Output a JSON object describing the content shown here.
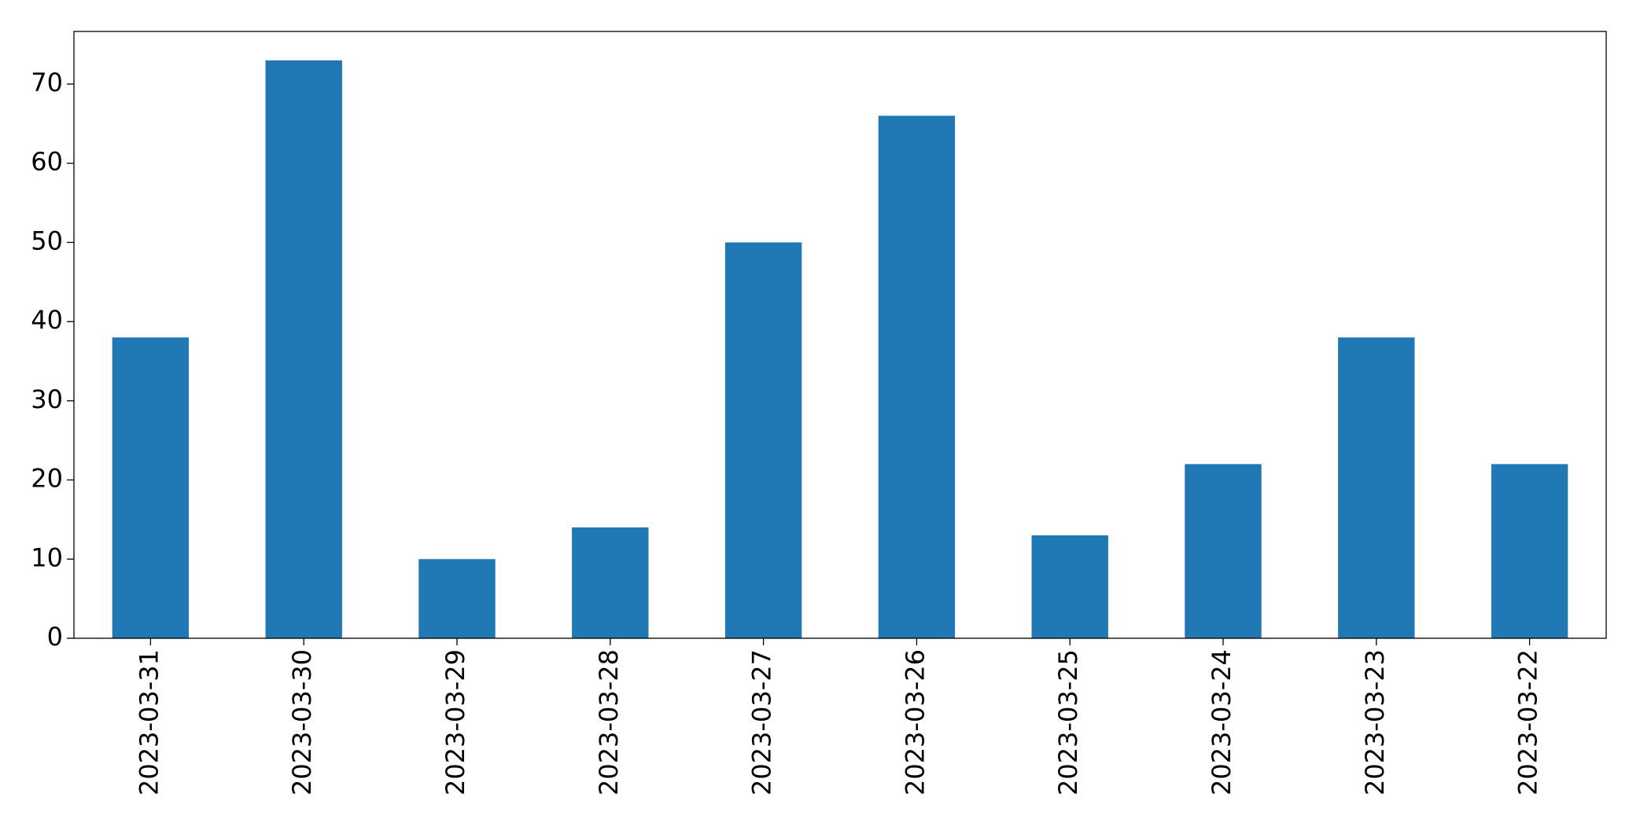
{
  "chart_data": {
    "type": "bar",
    "categories": [
      "2023-03-31",
      "2023-03-30",
      "2023-03-29",
      "2023-03-28",
      "2023-03-27",
      "2023-03-26",
      "2023-03-25",
      "2023-03-24",
      "2023-03-23",
      "2023-03-22"
    ],
    "values": [
      38,
      73,
      10,
      14,
      50,
      66,
      13,
      22,
      38,
      22
    ],
    "color": "#1f77b4",
    "ylim": [
      0,
      76.65
    ],
    "yticks": [
      0,
      10,
      20,
      30,
      40,
      50,
      60,
      70
    ],
    "grid": false
  }
}
